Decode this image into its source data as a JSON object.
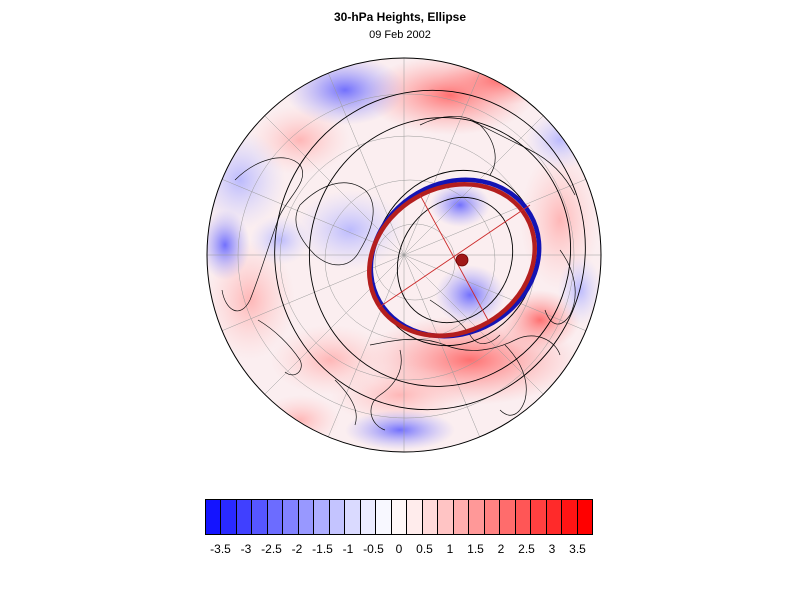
{
  "header": {
    "title": "30-hPa Heights, Ellipse",
    "subtitle": "09 Feb 2002"
  },
  "map": {
    "projection": "polar-stereographic",
    "hemisphere": "northern",
    "field": "30-hPa height anomaly",
    "overlay": "vortex ellipse fit (blue and red ellipses)"
  },
  "colorbar": {
    "labels": [
      "-3.5",
      "-3",
      "-2.5",
      "-2",
      "-1.5",
      "-1",
      "-0.5",
      "0",
      "0.5",
      "1",
      "1.5",
      "2",
      "2.5",
      "3",
      "3.5"
    ],
    "colors": [
      "#1414ff",
      "#2a2aff",
      "#4040ff",
      "#5656ff",
      "#6c6cff",
      "#8282ff",
      "#9898ff",
      "#aeaeff",
      "#c4c4ff",
      "#dadaff",
      "#ececff",
      "#f8f8ff",
      "#fff8f8",
      "#ffecec",
      "#ffdada",
      "#ffc4c4",
      "#ffaeae",
      "#ff9898",
      "#ff8282",
      "#ff6c6c",
      "#ff5656",
      "#ff4040",
      "#ff2a2a",
      "#ff1414",
      "#ff0000"
    ]
  },
  "colors": {
    "blue_ellipse": "#1414b4",
    "red_ellipse": "#b41e1e"
  }
}
